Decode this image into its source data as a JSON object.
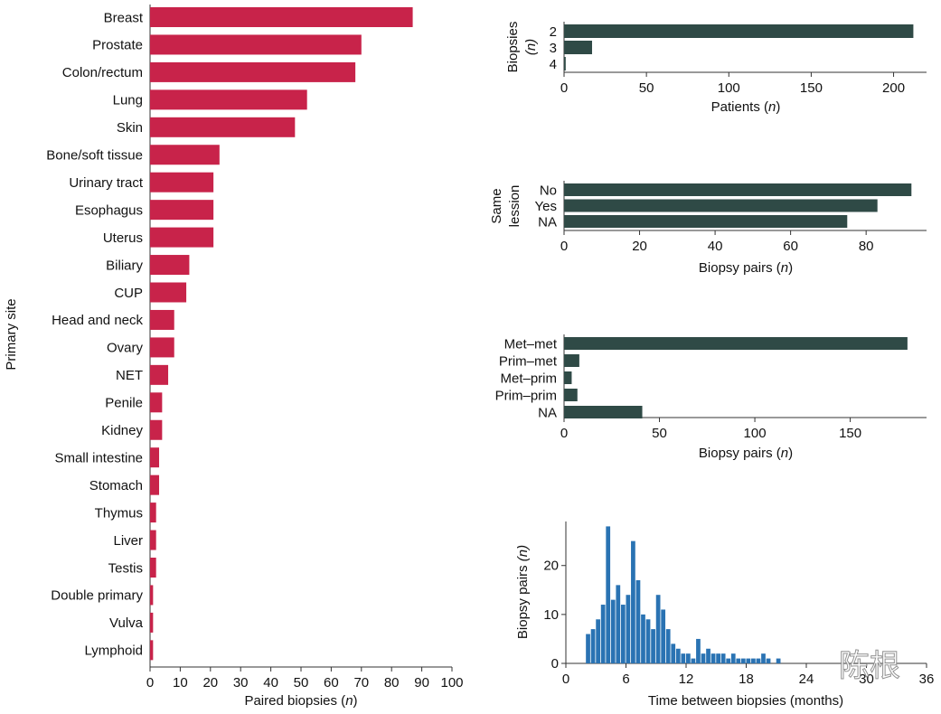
{
  "colors": {
    "primary_bar": "#c8234a",
    "dark_bar": "#2f4a46",
    "hist_bar": "#2a73b3",
    "axis": "#333333"
  },
  "watermark": "陈根",
  "chart_data": [
    {
      "id": "primary",
      "type": "bar",
      "orientation": "horizontal",
      "title": "",
      "xlabel": "Paired biopsies",
      "xlabel_var": "n",
      "ylabel": "Primary site",
      "xlim": [
        0,
        100
      ],
      "xticks": [
        0,
        10,
        20,
        30,
        40,
        50,
        60,
        70,
        80,
        90,
        100
      ],
      "categories": [
        "Breast",
        "Prostate",
        "Colon/rectum",
        "Lung",
        "Skin",
        "Bone/soft tissue",
        "Urinary tract",
        "Esophagus",
        "Uterus",
        "Biliary",
        "CUP",
        "Head and neck",
        "Ovary",
        "NET",
        "Penile",
        "Kidney",
        "Small intestine",
        "Stomach",
        "Thymus",
        "Liver",
        "Testis",
        "Double primary",
        "Vulva",
        "Lymphoid"
      ],
      "values": [
        87,
        70,
        68,
        52,
        48,
        23,
        21,
        21,
        21,
        13,
        12,
        8,
        8,
        6,
        4,
        4,
        3,
        3,
        2,
        2,
        2,
        1,
        1,
        1
      ]
    },
    {
      "id": "biopsies",
      "type": "bar",
      "orientation": "horizontal",
      "xlabel": "Patients",
      "xlabel_var": "n",
      "ylabel": "Biopsies",
      "ylabel_var": "(n)",
      "xlim": [
        0,
        220
      ],
      "xticks": [
        0,
        50,
        100,
        150,
        200
      ],
      "categories": [
        "2",
        "3",
        "4"
      ],
      "values": [
        212,
        17,
        1
      ]
    },
    {
      "id": "same_lesion",
      "type": "bar",
      "orientation": "horizontal",
      "xlabel": "Biopsy pairs",
      "xlabel_var": "n",
      "ylabel": "Same",
      "ylabel2": "lession",
      "xlim": [
        0,
        96
      ],
      "xticks": [
        0,
        20,
        40,
        60,
        80
      ],
      "categories": [
        "No",
        "Yes",
        "NA"
      ],
      "values": [
        92,
        83,
        75
      ]
    },
    {
      "id": "pair_type",
      "type": "bar",
      "orientation": "horizontal",
      "xlabel": "Biopsy pairs",
      "xlabel_var": "n",
      "ylabel": "",
      "xlim": [
        0,
        190
      ],
      "xticks": [
        0,
        50,
        100,
        150
      ],
      "categories": [
        "Met–met",
        "Prim–met",
        "Met–prim",
        "Prim–prim",
        "NA"
      ],
      "values": [
        180,
        8,
        4,
        7,
        41
      ]
    },
    {
      "id": "time",
      "type": "bar",
      "subtype": "histogram",
      "xlabel": "Time between biopsies (months)",
      "ylabel": "Biopsy pairs",
      "ylabel_var": "(n)",
      "xlim": [
        0,
        36
      ],
      "ylim": [
        0,
        29
      ],
      "xticks": [
        0,
        6,
        12,
        18,
        24,
        30,
        36
      ],
      "yticks": [
        0,
        10,
        20
      ],
      "bin_width": 0.5,
      "x": [
        2.0,
        2.5,
        3.0,
        3.5,
        4.0,
        4.5,
        5.0,
        5.5,
        6.0,
        6.5,
        7.0,
        7.5,
        8.0,
        8.5,
        9.0,
        9.5,
        10.0,
        10.5,
        11.0,
        11.5,
        12.0,
        12.5,
        13.0,
        13.5,
        14.0,
        14.5,
        15.0,
        15.5,
        16.0,
        16.5,
        17.0,
        17.5,
        18.0,
        18.5,
        19.0,
        19.5,
        20.0,
        20.5,
        21.0,
        21.5,
        22.0,
        22.5,
        23.0,
        23.5,
        24.0,
        24.5,
        25.0,
        25.5,
        26.0,
        26.5,
        27.0,
        27.5,
        28.0,
        28.5,
        29.0,
        29.5,
        30.0,
        30.5,
        31.0
      ],
      "values": [
        6,
        7,
        9,
        12,
        28,
        13,
        16,
        12,
        14,
        25,
        17,
        10,
        9,
        7,
        14,
        11,
        7,
        4,
        3,
        2,
        2,
        1,
        5,
        2,
        3,
        2,
        2,
        2,
        1,
        2,
        1,
        1,
        1,
        1,
        1,
        2,
        1,
        0,
        1,
        0,
        0,
        0,
        0,
        0,
        0,
        0,
        0,
        0,
        0,
        0,
        0,
        0,
        0,
        0,
        0,
        0,
        0,
        0,
        0
      ]
    }
  ]
}
